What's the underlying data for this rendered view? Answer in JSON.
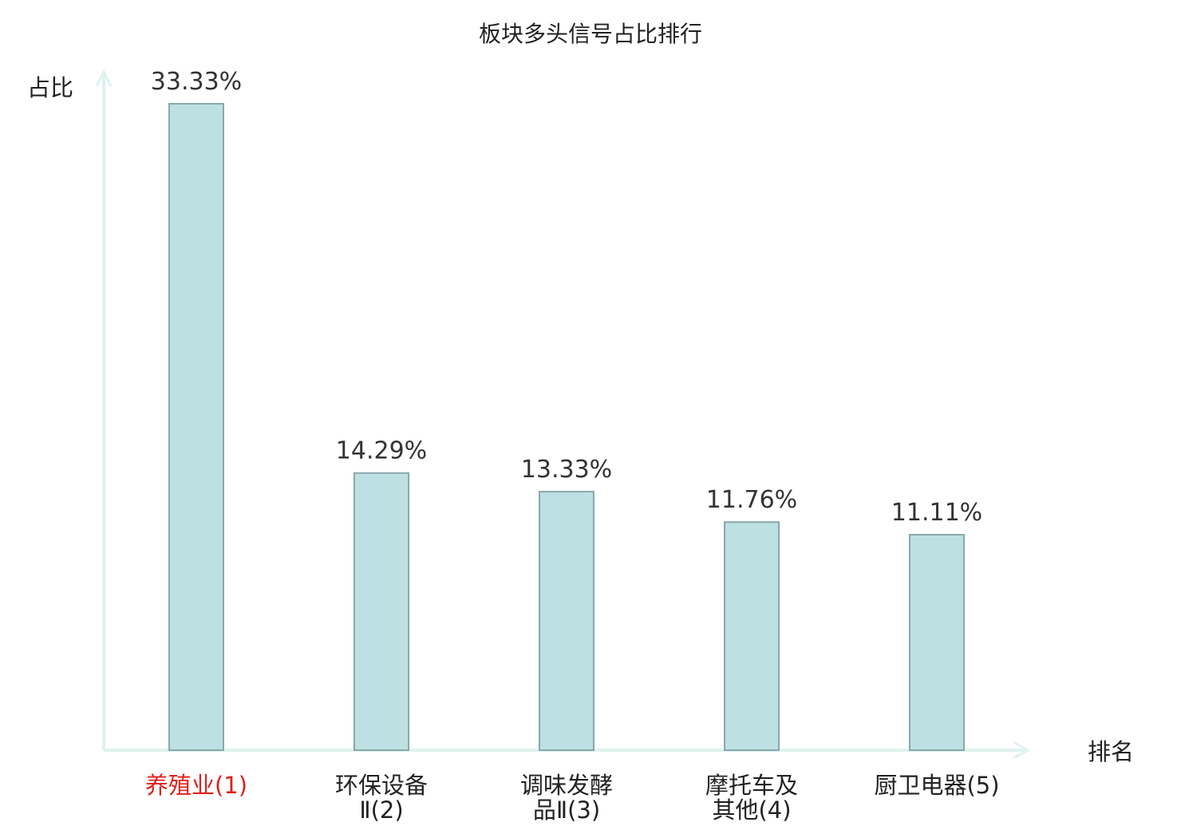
{
  "chart_data": {
    "type": "bar",
    "title": "板块多头信号占比排行",
    "ylabel": "占比",
    "xlabel": "排名",
    "ylim": [
      0,
      35
    ],
    "grid": false,
    "categories": [
      {
        "lines": [
          "养殖业(1)"
        ],
        "highlight": true
      },
      {
        "lines": [
          "环保设备",
          "Ⅱ(2)"
        ],
        "highlight": false
      },
      {
        "lines": [
          "调味发酵",
          "品Ⅱ(3)"
        ],
        "highlight": false
      },
      {
        "lines": [
          "摩托车及",
          "其他(4)"
        ],
        "highlight": false
      },
      {
        "lines": [
          "厨卫电器(5)"
        ],
        "highlight": false
      }
    ],
    "values": [
      33.33,
      14.29,
      13.33,
      11.76,
      11.11
    ],
    "value_labels": [
      "33.33%",
      "14.29%",
      "13.33%",
      "11.76%",
      "11.11%"
    ]
  },
  "colors": {
    "bar_fill": "#bde0e2",
    "bar_stroke": "#8aa8aa",
    "axis": "#dff2ef",
    "text": "#333333",
    "title": "#222222",
    "highlight": "#e0201b"
  }
}
